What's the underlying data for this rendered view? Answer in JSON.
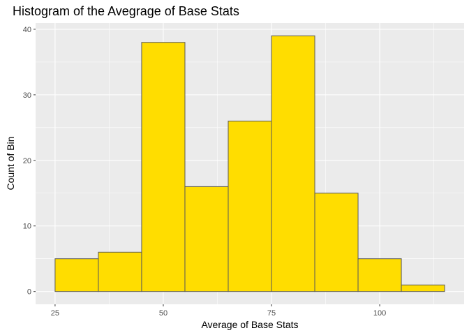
{
  "chart_data": {
    "type": "bar",
    "title": "Histogram of the Avegrage of Base Stats",
    "xlabel": "Average of Base Stats",
    "ylabel": "Count of Bin",
    "bins": [
      {
        "x0": 25,
        "x1": 35,
        "count": 5
      },
      {
        "x0": 35,
        "x1": 45,
        "count": 6
      },
      {
        "x0": 45,
        "x1": 55,
        "count": 38
      },
      {
        "x0": 55,
        "x1": 65,
        "count": 16
      },
      {
        "x0": 65,
        "x1": 75,
        "count": 26
      },
      {
        "x0": 75,
        "x1": 85,
        "count": 39
      },
      {
        "x0": 85,
        "x1": 95,
        "count": 15
      },
      {
        "x0": 95,
        "x1": 105,
        "count": 5
      },
      {
        "x0": 105,
        "x1": 115,
        "count": 1
      }
    ],
    "xlim": [
      20.5,
      119.5
    ],
    "ylim": [
      -1.95,
      40.95
    ],
    "x_ticks": [
      25,
      50,
      75,
      100
    ],
    "x_minor_ticks": [
      37.5,
      62.5,
      87.5,
      112.5
    ],
    "y_ticks": [
      0,
      10,
      20,
      30,
      40
    ],
    "y_minor_ticks": [
      5,
      15,
      25,
      35
    ],
    "grid": true,
    "colors": {
      "bar_fill": "#FFDD00",
      "bar_stroke": "#595959",
      "panel_background": "#EBEBEB",
      "grid": "#FFFFFF"
    }
  }
}
